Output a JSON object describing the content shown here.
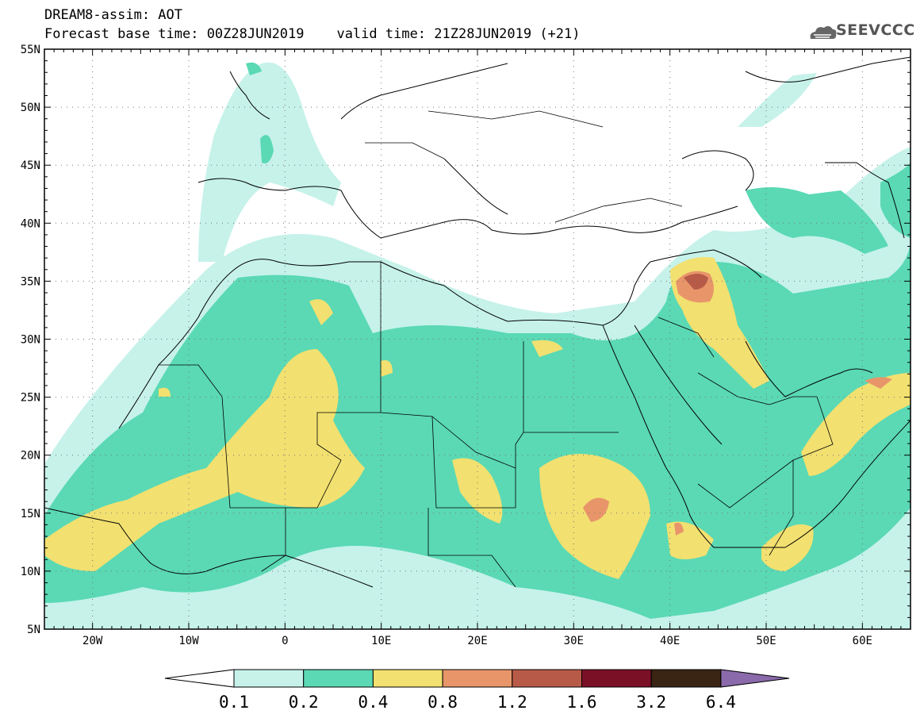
{
  "header": {
    "title": "DREAM8-assim: AOT",
    "subtitle": "Forecast base time: 00Z28JUN2019    valid time: 21Z28JUN2019 (+21)"
  },
  "logo": {
    "text": "SEEVCCC",
    "icon": "cloud-icon"
  },
  "map": {
    "projection": "lat-lon",
    "lon_range": [
      -25,
      65
    ],
    "lat_range": [
      5,
      55
    ],
    "lat_ticks": [
      "5N",
      "10N",
      "15N",
      "20N",
      "25N",
      "30N",
      "35N",
      "40N",
      "45N",
      "50N",
      "55N"
    ],
    "lon_ticks": [
      "20W",
      "10W",
      "0",
      "10E",
      "20E",
      "30E",
      "40E",
      "50E",
      "60E"
    ],
    "gridlines": "dotted"
  },
  "colorbar": {
    "labels": [
      "0.1",
      "0.2",
      "0.4",
      "0.8",
      "1.2",
      "1.6",
      "3.2",
      "6.4"
    ],
    "colors": [
      "#ffffff",
      "#c6f2ea",
      "#5ad9b4",
      "#f2e070",
      "#e8956a",
      "#b85a48",
      "#7a1025",
      "#3a2414",
      "#8a6aaa"
    ]
  }
}
